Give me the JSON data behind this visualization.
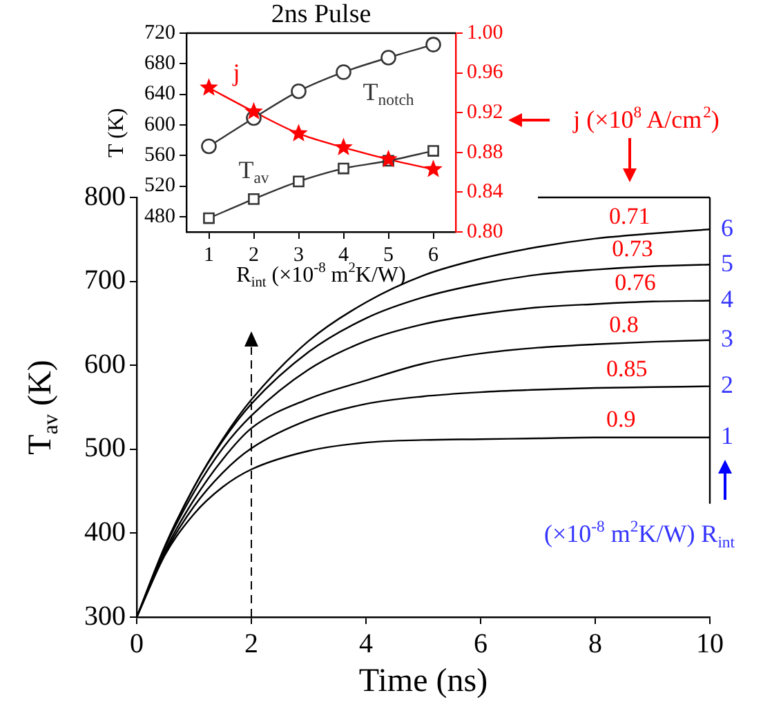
{
  "chart_data": [
    {
      "type": "line",
      "xlabel": "Time (ns)",
      "ylabel": "T$_{av}$ (K)",
      "x": [
        0,
        0.5,
        1,
        1.5,
        2,
        3,
        4,
        5,
        6,
        7,
        8,
        9,
        10
      ],
      "xlim": [
        0,
        10
      ],
      "xticks": [
        0,
        2,
        4,
        6,
        8,
        10
      ],
      "ylim": [
        300,
        800
      ],
      "yticks": [
        300,
        400,
        500,
        600,
        700,
        800
      ],
      "grid": false,
      "legend": false,
      "series": [
        {
          "name": "1",
          "color": "#000000",
          "values": [
            300,
            375,
            423,
            455,
            476,
            498,
            508,
            511,
            512,
            513,
            514,
            514,
            514
          ]
        },
        {
          "name": "2",
          "color": "#000000",
          "values": [
            300,
            377,
            432,
            472,
            501,
            535,
            554,
            563,
            568,
            571,
            573,
            574,
            575
          ]
        },
        {
          "name": "3",
          "color": "#000000",
          "values": [
            300,
            380,
            440,
            488,
            525,
            560,
            582,
            602,
            614,
            621,
            625,
            628,
            630
          ]
        },
        {
          "name": "4",
          "color": "#000000",
          "values": [
            300,
            384,
            449,
            501,
            540,
            595,
            629,
            649,
            661,
            669,
            673,
            676,
            677
          ]
        },
        {
          "name": "5",
          "color": "#000000",
          "values": [
            300,
            386,
            455,
            510,
            554,
            616,
            656,
            681,
            697,
            708,
            714,
            718,
            720
          ]
        },
        {
          "name": "6",
          "color": "#000000",
          "values": [
            300,
            385,
            455,
            512,
            559,
            629,
            675,
            707,
            727,
            741,
            751,
            757,
            762
          ]
        }
      ],
      "ref_lines": [
        {
          "axis": "x",
          "value": 2,
          "line_style": "dashed",
          "color": "#000000"
        }
      ],
      "annotations": [
        "j (×10$^{8}$ A/cm$^{2}$)",
        "(×10$^{-8}$ m$^{2}$K/W) R$_{int}$",
        {
          "text": "0.71",
          "x": 8.6,
          "y": 755
        },
        {
          "text": "0.73",
          "x": 8.65,
          "y": 716
        },
        {
          "text": "0.76",
          "x": 8.7,
          "y": 676
        },
        {
          "text": "0.8",
          "x": 8.5,
          "y": 626
        },
        {
          "text": "0.85",
          "x": 8.55,
          "y": 573
        },
        {
          "text": "0.9",
          "x": 8.45,
          "y": 513
        }
      ]
    },
    {
      "type": "line",
      "title": "2ns Pulse",
      "xlabel": "R$_{int}$ (×10$^{-8}$ m$^{2}$K/W)",
      "ylabel": "T (K)",
      "x": [
        1,
        2,
        3,
        4,
        5,
        6
      ],
      "xlim": [
        0.5,
        6.5
      ],
      "xticks": [
        1,
        2,
        3,
        4,
        5,
        6
      ],
      "ylim": [
        460,
        720
      ],
      "yticks": [
        480,
        520,
        560,
        600,
        640,
        680,
        720
      ],
      "y2lim": [
        0.8,
        1.0
      ],
      "y2ticks": [
        {
          "value": 0.8,
          "label": "0.80"
        },
        {
          "value": 0.84,
          "label": "0.84"
        },
        {
          "value": 0.88,
          "label": "0.88"
        },
        {
          "value": 0.92,
          "label": "0.92"
        },
        {
          "value": 0.96,
          "label": "0.96"
        },
        {
          "value": 1.0,
          "label": "1.00"
        }
      ],
      "grid": false,
      "legend": false,
      "series": [
        {
          "name": "T$_{notch}$",
          "color": "#333333",
          "marker": "circle",
          "values": [
            572,
            609,
            644,
            669,
            688,
            705
          ]
        },
        {
          "name": "T$_{av}$",
          "color": "#333333",
          "marker": "square",
          "values": [
            478,
            503,
            526,
            543,
            553,
            566
          ]
        },
        {
          "name": "j",
          "color": "#ff0000",
          "marker": "star",
          "axis": "y2",
          "values": [
            0.945,
            0.921,
            0.899,
            0.885,
            0.873,
            0.863
          ]
        }
      ]
    }
  ]
}
